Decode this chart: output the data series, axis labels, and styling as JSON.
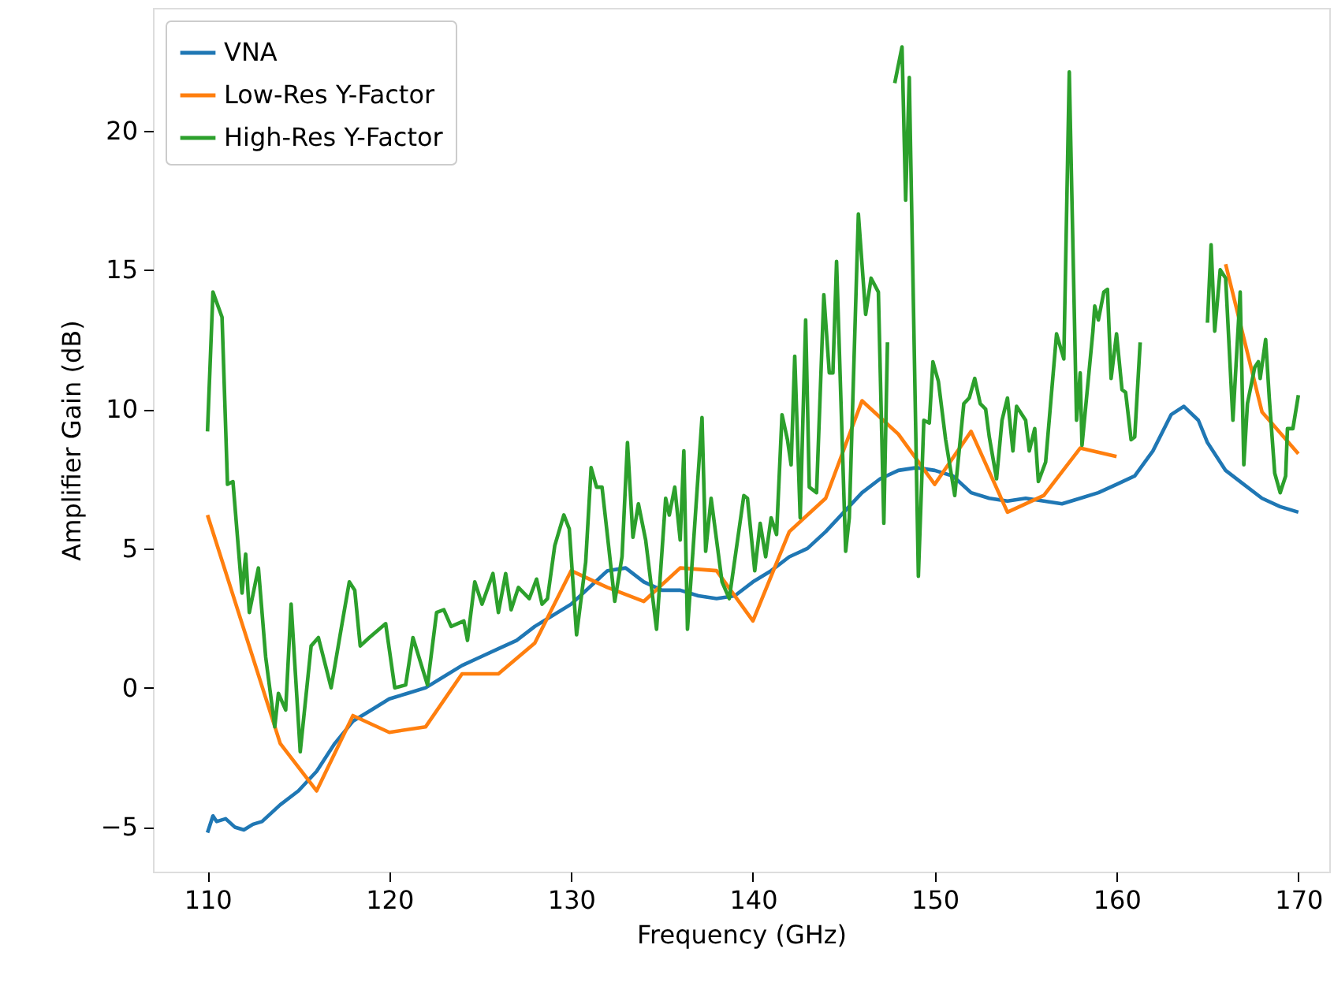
{
  "chart_data": {
    "type": "line",
    "xlabel": "Frequency (GHz)",
    "ylabel": "Amplifier Gain (dB)",
    "xlim": [
      107,
      171.7
    ],
    "ylim": [
      -6.6,
      24.4
    ],
    "xticks": [
      110,
      120,
      130,
      140,
      150,
      160,
      170
    ],
    "yticks": [
      -5,
      0,
      5,
      10,
      15,
      20
    ],
    "grid": false,
    "legend": "top left",
    "line_style": "solid",
    "series": [
      {
        "name": "VNA",
        "color": "#1f77b4",
        "x": [
          110,
          110.3,
          110.5,
          111,
          111.5,
          112,
          112.5,
          113,
          114,
          115,
          116,
          117,
          118,
          119,
          120,
          121,
          122,
          123,
          124,
          125,
          126,
          127,
          128,
          129,
          130,
          131,
          132,
          133,
          134,
          135,
          136,
          137,
          138,
          139,
          140,
          141,
          142,
          143,
          144,
          145,
          146,
          147,
          148,
          149,
          150,
          151,
          152,
          153,
          154,
          155,
          156,
          157,
          158,
          159,
          160,
          161,
          162,
          163,
          163.7,
          164.5,
          165,
          166,
          167,
          168,
          169,
          170
        ],
        "values": [
          -5.2,
          -4.6,
          -4.8,
          -4.7,
          -5.0,
          -5.1,
          -4.9,
          -4.8,
          -4.2,
          -3.7,
          -3.0,
          -2.0,
          -1.2,
          -0.8,
          -0.4,
          -0.2,
          0.0,
          0.4,
          0.8,
          1.1,
          1.4,
          1.7,
          2.2,
          2.6,
          3.0,
          3.6,
          4.2,
          4.3,
          3.8,
          3.5,
          3.5,
          3.3,
          3.2,
          3.3,
          3.8,
          4.2,
          4.7,
          5.0,
          5.6,
          6.3,
          7.0,
          7.5,
          7.8,
          7.9,
          7.8,
          7.6,
          7.0,
          6.8,
          6.7,
          6.8,
          6.7,
          6.6,
          6.8,
          7.0,
          7.3,
          7.6,
          8.5,
          9.8,
          10.1,
          9.6,
          8.8,
          7.8,
          7.3,
          6.8,
          6.5,
          6.3
        ]
      },
      {
        "name": "Low-Res Y-Factor",
        "color": "#ff7f0e",
        "x": [
          110,
          114,
          116,
          118,
          120,
          122,
          124,
          126,
          128,
          130,
          132,
          134,
          136,
          138,
          140,
          142,
          144,
          146,
          148,
          150,
          152,
          154,
          156,
          158,
          160,
          163,
          166,
          168,
          170
        ],
        "values": [
          6.2,
          -2.0,
          -3.7,
          -1.0,
          -1.6,
          -1.4,
          0.5,
          0.5,
          1.6,
          4.2,
          3.6,
          3.1,
          4.3,
          4.2,
          2.4,
          5.6,
          6.8,
          10.3,
          9.1,
          7.3,
          9.2,
          6.3,
          6.9,
          8.6,
          8.3,
          null,
          15.2,
          9.9,
          8.4
        ]
      },
      {
        "name": "High-Res Y-Factor",
        "color": "#2ca02c",
        "x": [
          110.0,
          110.3,
          110.8,
          111.1,
          111.4,
          111.9,
          112.1,
          112.3,
          112.8,
          113.2,
          113.7,
          113.9,
          114.3,
          114.6,
          115.1,
          115.7,
          116.1,
          116.8,
          117.4,
          117.8,
          118.1,
          118.4,
          118.9,
          119.8,
          120.3,
          120.9,
          121.3,
          122.1,
          122.6,
          123.0,
          123.4,
          124.1,
          124.3,
          124.7,
          125.1,
          125.7,
          126.0,
          126.4,
          126.7,
          127.1,
          127.7,
          128.1,
          128.4,
          128.7,
          129.1,
          129.6,
          129.9,
          130.3,
          130.8,
          131.1,
          131.4,
          131.7,
          132.4,
          132.8,
          133.1,
          133.4,
          133.7,
          134.1,
          134.7,
          135.2,
          135.4,
          135.7,
          136.0,
          136.2,
          136.4,
          136.7,
          137.2,
          137.4,
          137.7,
          138.3,
          138.7,
          139.5,
          139.7,
          140.1,
          140.4,
          140.7,
          141.0,
          141.3,
          141.6,
          141.9,
          142.1,
          142.3,
          142.6,
          142.9,
          143.1,
          143.5,
          143.9,
          144.2,
          144.4,
          144.6,
          145.1,
          145.3,
          145.8,
          146.2,
          146.5,
          146.9,
          147.2,
          147.4,
          147.6,
          147.8,
          148.2,
          148.4,
          148.6,
          149.1,
          149.4,
          149.7,
          149.9,
          150.2,
          150.6,
          151.1,
          151.6,
          151.9,
          152.2,
          152.5,
          152.8,
          153.0,
          153.4,
          153.7,
          154.0,
          154.3,
          154.5,
          155.0,
          155.2,
          155.5,
          155.7,
          156.1,
          156.7,
          157.1,
          157.4,
          157.8,
          158.0,
          158.1,
          158.7,
          158.8,
          159.0,
          159.3,
          159.5,
          159.7,
          160.0,
          160.3,
          160.5,
          160.8,
          161.0,
          161.3,
          163.0,
          165.0,
          165.2,
          165.4,
          165.7,
          166.0,
          166.4,
          166.8,
          167.0,
          167.2,
          167.6,
          167.8,
          167.9,
          168.2,
          168.4,
          168.7,
          169.0,
          169.3,
          169.4,
          169.7,
          170.0
        ],
        "values": [
          9.2,
          14.2,
          13.3,
          7.3,
          7.4,
          3.4,
          4.8,
          2.7,
          4.3,
          1.1,
          -1.4,
          -0.2,
          -0.8,
          3.0,
          -2.3,
          1.5,
          1.8,
          0.0,
          2.3,
          3.8,
          3.5,
          1.5,
          1.8,
          2.3,
          0.0,
          0.1,
          1.8,
          0.1,
          2.7,
          2.8,
          2.2,
          2.4,
          1.7,
          3.8,
          3.0,
          4.1,
          2.7,
          4.1,
          2.8,
          3.6,
          3.2,
          3.9,
          3.0,
          3.2,
          5.1,
          6.2,
          5.7,
          1.9,
          4.5,
          7.9,
          7.2,
          7.2,
          3.1,
          4.7,
          8.8,
          5.4,
          6.6,
          5.3,
          2.1,
          6.8,
          6.2,
          7.2,
          5.3,
          8.5,
          2.1,
          4.9,
          9.7,
          4.9,
          6.8,
          3.8,
          3.2,
          6.9,
          6.8,
          4.2,
          5.9,
          4.7,
          6.1,
          5.5,
          9.8,
          8.9,
          8.0,
          11.9,
          6.1,
          13.2,
          7.2,
          7.0,
          14.1,
          11.3,
          11.3,
          15.3,
          4.9,
          6.1,
          17.0,
          13.4,
          14.7,
          14.2,
          5.9,
          12.4,
          null,
          21.7,
          23.0,
          17.5,
          21.9,
          4.0,
          9.6,
          9.5,
          11.7,
          11.0,
          8.9,
          6.9,
          10.2,
          10.4,
          11.1,
          10.2,
          10.0,
          9.0,
          7.5,
          9.6,
          10.4,
          8.5,
          10.1,
          9.6,
          8.5,
          9.3,
          7.4,
          8.1,
          12.7,
          11.8,
          22.1,
          9.6,
          11.3,
          8.7,
          12.8,
          13.7,
          13.2,
          14.2,
          14.3,
          11.1,
          12.7,
          10.7,
          10.6,
          8.9,
          9.0,
          12.4,
          null,
          13.1,
          15.9,
          12.8,
          15.0,
          14.7,
          9.6,
          14.2,
          8.0,
          10.2,
          11.5,
          11.7,
          11.1,
          12.5,
          10.4,
          7.7,
          7.0,
          7.6,
          9.3,
          9.3,
          10.5
        ]
      }
    ]
  }
}
